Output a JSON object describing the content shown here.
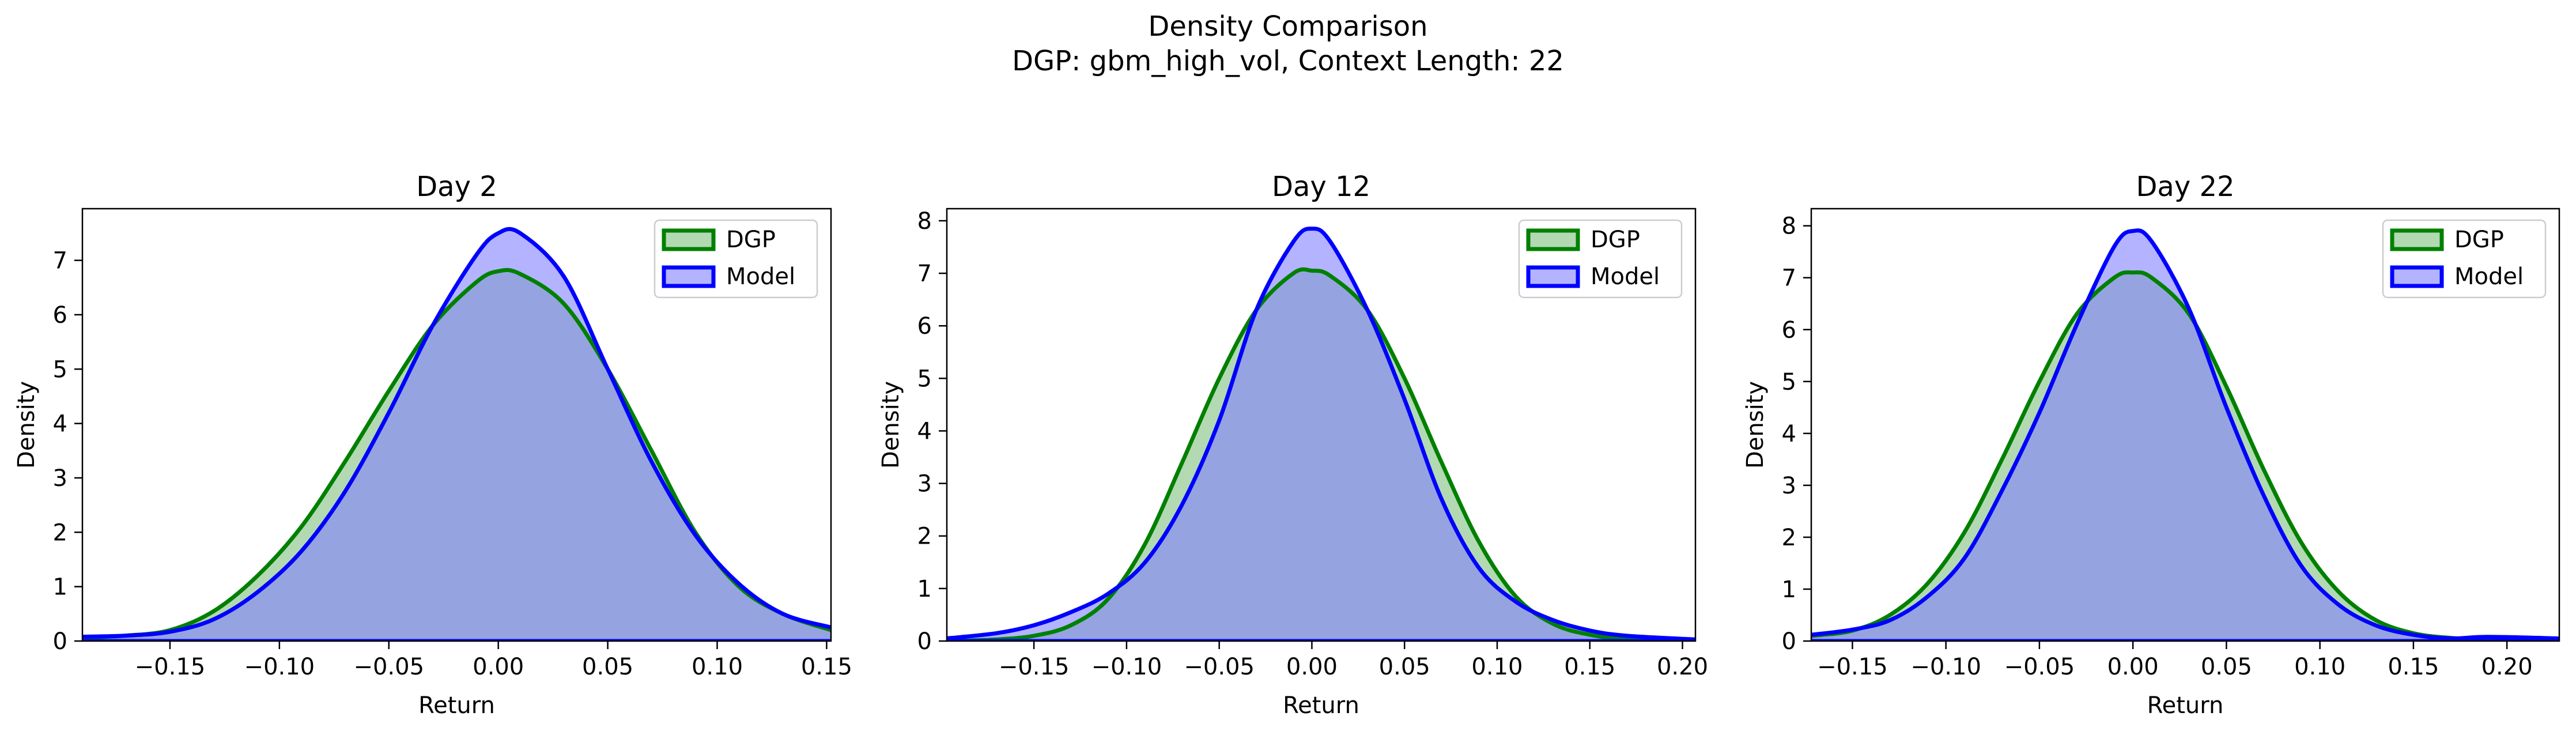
{
  "figure": {
    "title": "Density Comparison",
    "subtitle": "DGP: gbm_high_vol, Context Length: 22"
  },
  "colors": {
    "dgp_line": "#008000",
    "dgp_fill": "#80c080",
    "model_line": "#0000ff",
    "model_fill": "#8080ff",
    "overlap_fill": "#7f99c8"
  },
  "chart_data": [
    {
      "type": "area",
      "title": "Day 2",
      "xlabel": "Return",
      "ylabel": "Density",
      "xlim": [
        -0.19,
        0.152
      ],
      "ylim": [
        0,
        7.95
      ],
      "xticks": [
        -0.15,
        -0.1,
        -0.05,
        0.0,
        0.05,
        0.1,
        0.15
      ],
      "xtick_labels": [
        "−0.15",
        "−0.10",
        "−0.05",
        "0.00",
        "0.05",
        "0.10",
        "0.15"
      ],
      "yticks": [
        0,
        1,
        2,
        3,
        4,
        5,
        6,
        7
      ],
      "ytick_labels": [
        "0",
        "1",
        "2",
        "3",
        "4",
        "5",
        "6",
        "7"
      ],
      "legend": "top-right",
      "series": [
        {
          "name": "DGP",
          "x": [
            -0.19,
            -0.17,
            -0.15,
            -0.13,
            -0.11,
            -0.09,
            -0.07,
            -0.05,
            -0.03,
            -0.01,
            0.0,
            0.01,
            0.03,
            0.05,
            0.07,
            0.09,
            0.11,
            0.13,
            0.152
          ],
          "y": [
            0.06,
            0.1,
            0.2,
            0.55,
            1.2,
            2.1,
            3.3,
            4.6,
            5.8,
            6.6,
            6.8,
            6.75,
            6.2,
            5.0,
            3.5,
            2.0,
            1.0,
            0.5,
            0.2
          ]
        },
        {
          "name": "Model",
          "x": [
            -0.19,
            -0.17,
            -0.15,
            -0.13,
            -0.11,
            -0.09,
            -0.07,
            -0.05,
            -0.03,
            -0.01,
            0.0,
            0.01,
            0.03,
            0.05,
            0.07,
            0.09,
            0.11,
            0.13,
            0.152
          ],
          "y": [
            0.08,
            0.1,
            0.17,
            0.4,
            0.9,
            1.65,
            2.75,
            4.2,
            5.8,
            7.1,
            7.5,
            7.5,
            6.7,
            5.0,
            3.3,
            1.95,
            1.05,
            0.5,
            0.25
          ]
        }
      ]
    },
    {
      "type": "area",
      "title": "Day 12",
      "xlabel": "Return",
      "ylabel": "Density",
      "xlim": [
        -0.197,
        0.207
      ],
      "ylim": [
        0,
        8.23
      ],
      "xticks": [
        -0.15,
        -0.1,
        -0.05,
        0.0,
        0.05,
        0.1,
        0.15,
        0.2
      ],
      "xtick_labels": [
        "−0.15",
        "−0.10",
        "−0.05",
        "0.00",
        "0.05",
        "0.10",
        "0.15",
        "0.20"
      ],
      "yticks": [
        0,
        1,
        2,
        3,
        4,
        5,
        6,
        7,
        8
      ],
      "ytick_labels": [
        "0",
        "1",
        "2",
        "3",
        "4",
        "5",
        "6",
        "7",
        "8"
      ],
      "legend": "top-right",
      "series": [
        {
          "name": "DGP",
          "x": [
            -0.197,
            -0.17,
            -0.15,
            -0.13,
            -0.11,
            -0.09,
            -0.07,
            -0.05,
            -0.03,
            -0.01,
            0.0,
            0.01,
            0.03,
            0.05,
            0.07,
            0.09,
            0.11,
            0.13,
            0.15,
            0.17,
            0.207
          ],
          "y": [
            0.0,
            0.03,
            0.1,
            0.3,
            0.8,
            1.85,
            3.4,
            5.0,
            6.3,
            7.0,
            7.05,
            6.95,
            6.3,
            5.0,
            3.4,
            1.9,
            0.85,
            0.33,
            0.12,
            0.04,
            0.0
          ]
        },
        {
          "name": "Model",
          "x": [
            -0.197,
            -0.17,
            -0.15,
            -0.13,
            -0.11,
            -0.09,
            -0.07,
            -0.05,
            -0.03,
            -0.01,
            0.0,
            0.01,
            0.03,
            0.05,
            0.07,
            0.09,
            0.11,
            0.13,
            0.15,
            0.17,
            0.207
          ],
          "y": [
            0.05,
            0.15,
            0.3,
            0.55,
            0.9,
            1.5,
            2.6,
            4.2,
            6.3,
            7.6,
            7.85,
            7.6,
            6.3,
            4.6,
            2.7,
            1.4,
            0.75,
            0.4,
            0.2,
            0.1,
            0.03
          ]
        }
      ]
    },
    {
      "type": "area",
      "title": "Day 22",
      "xlabel": "Return",
      "ylabel": "Density",
      "xlim": [
        -0.172,
        0.228
      ],
      "ylim": [
        0,
        8.33
      ],
      "xticks": [
        -0.15,
        -0.1,
        -0.05,
        0.0,
        0.05,
        0.1,
        0.15,
        0.2
      ],
      "xtick_labels": [
        "−0.15",
        "−0.10",
        "−0.05",
        "0.00",
        "0.05",
        "0.10",
        "0.15",
        "0.20"
      ],
      "yticks": [
        0,
        1,
        2,
        3,
        4,
        5,
        6,
        7,
        8
      ],
      "ytick_labels": [
        "0",
        "1",
        "2",
        "3",
        "4",
        "5",
        "6",
        "7",
        "8"
      ],
      "legend": "top-right",
      "series": [
        {
          "name": "DGP",
          "x": [
            -0.172,
            -0.15,
            -0.13,
            -0.11,
            -0.09,
            -0.07,
            -0.05,
            -0.03,
            -0.01,
            0.0,
            0.01,
            0.03,
            0.05,
            0.07,
            0.09,
            0.11,
            0.13,
            0.15,
            0.17,
            0.19,
            0.228
          ],
          "y": [
            0.1,
            0.2,
            0.5,
            1.1,
            2.1,
            3.5,
            5.0,
            6.3,
            7.0,
            7.1,
            7.0,
            6.3,
            4.9,
            3.3,
            1.9,
            0.95,
            0.4,
            0.15,
            0.06,
            0.03,
            0.02
          ]
        },
        {
          "name": "Model",
          "x": [
            -0.172,
            -0.15,
            -0.13,
            -0.11,
            -0.09,
            -0.07,
            -0.05,
            -0.03,
            -0.01,
            0.0,
            0.01,
            0.03,
            0.05,
            0.07,
            0.09,
            0.11,
            0.13,
            0.15,
            0.17,
            0.19,
            0.228
          ],
          "y": [
            0.12,
            0.22,
            0.4,
            0.85,
            1.6,
            2.9,
            4.4,
            6.1,
            7.6,
            7.9,
            7.7,
            6.4,
            4.5,
            2.8,
            1.45,
            0.7,
            0.3,
            0.12,
            0.05,
            0.08,
            0.05
          ]
        }
      ]
    }
  ]
}
